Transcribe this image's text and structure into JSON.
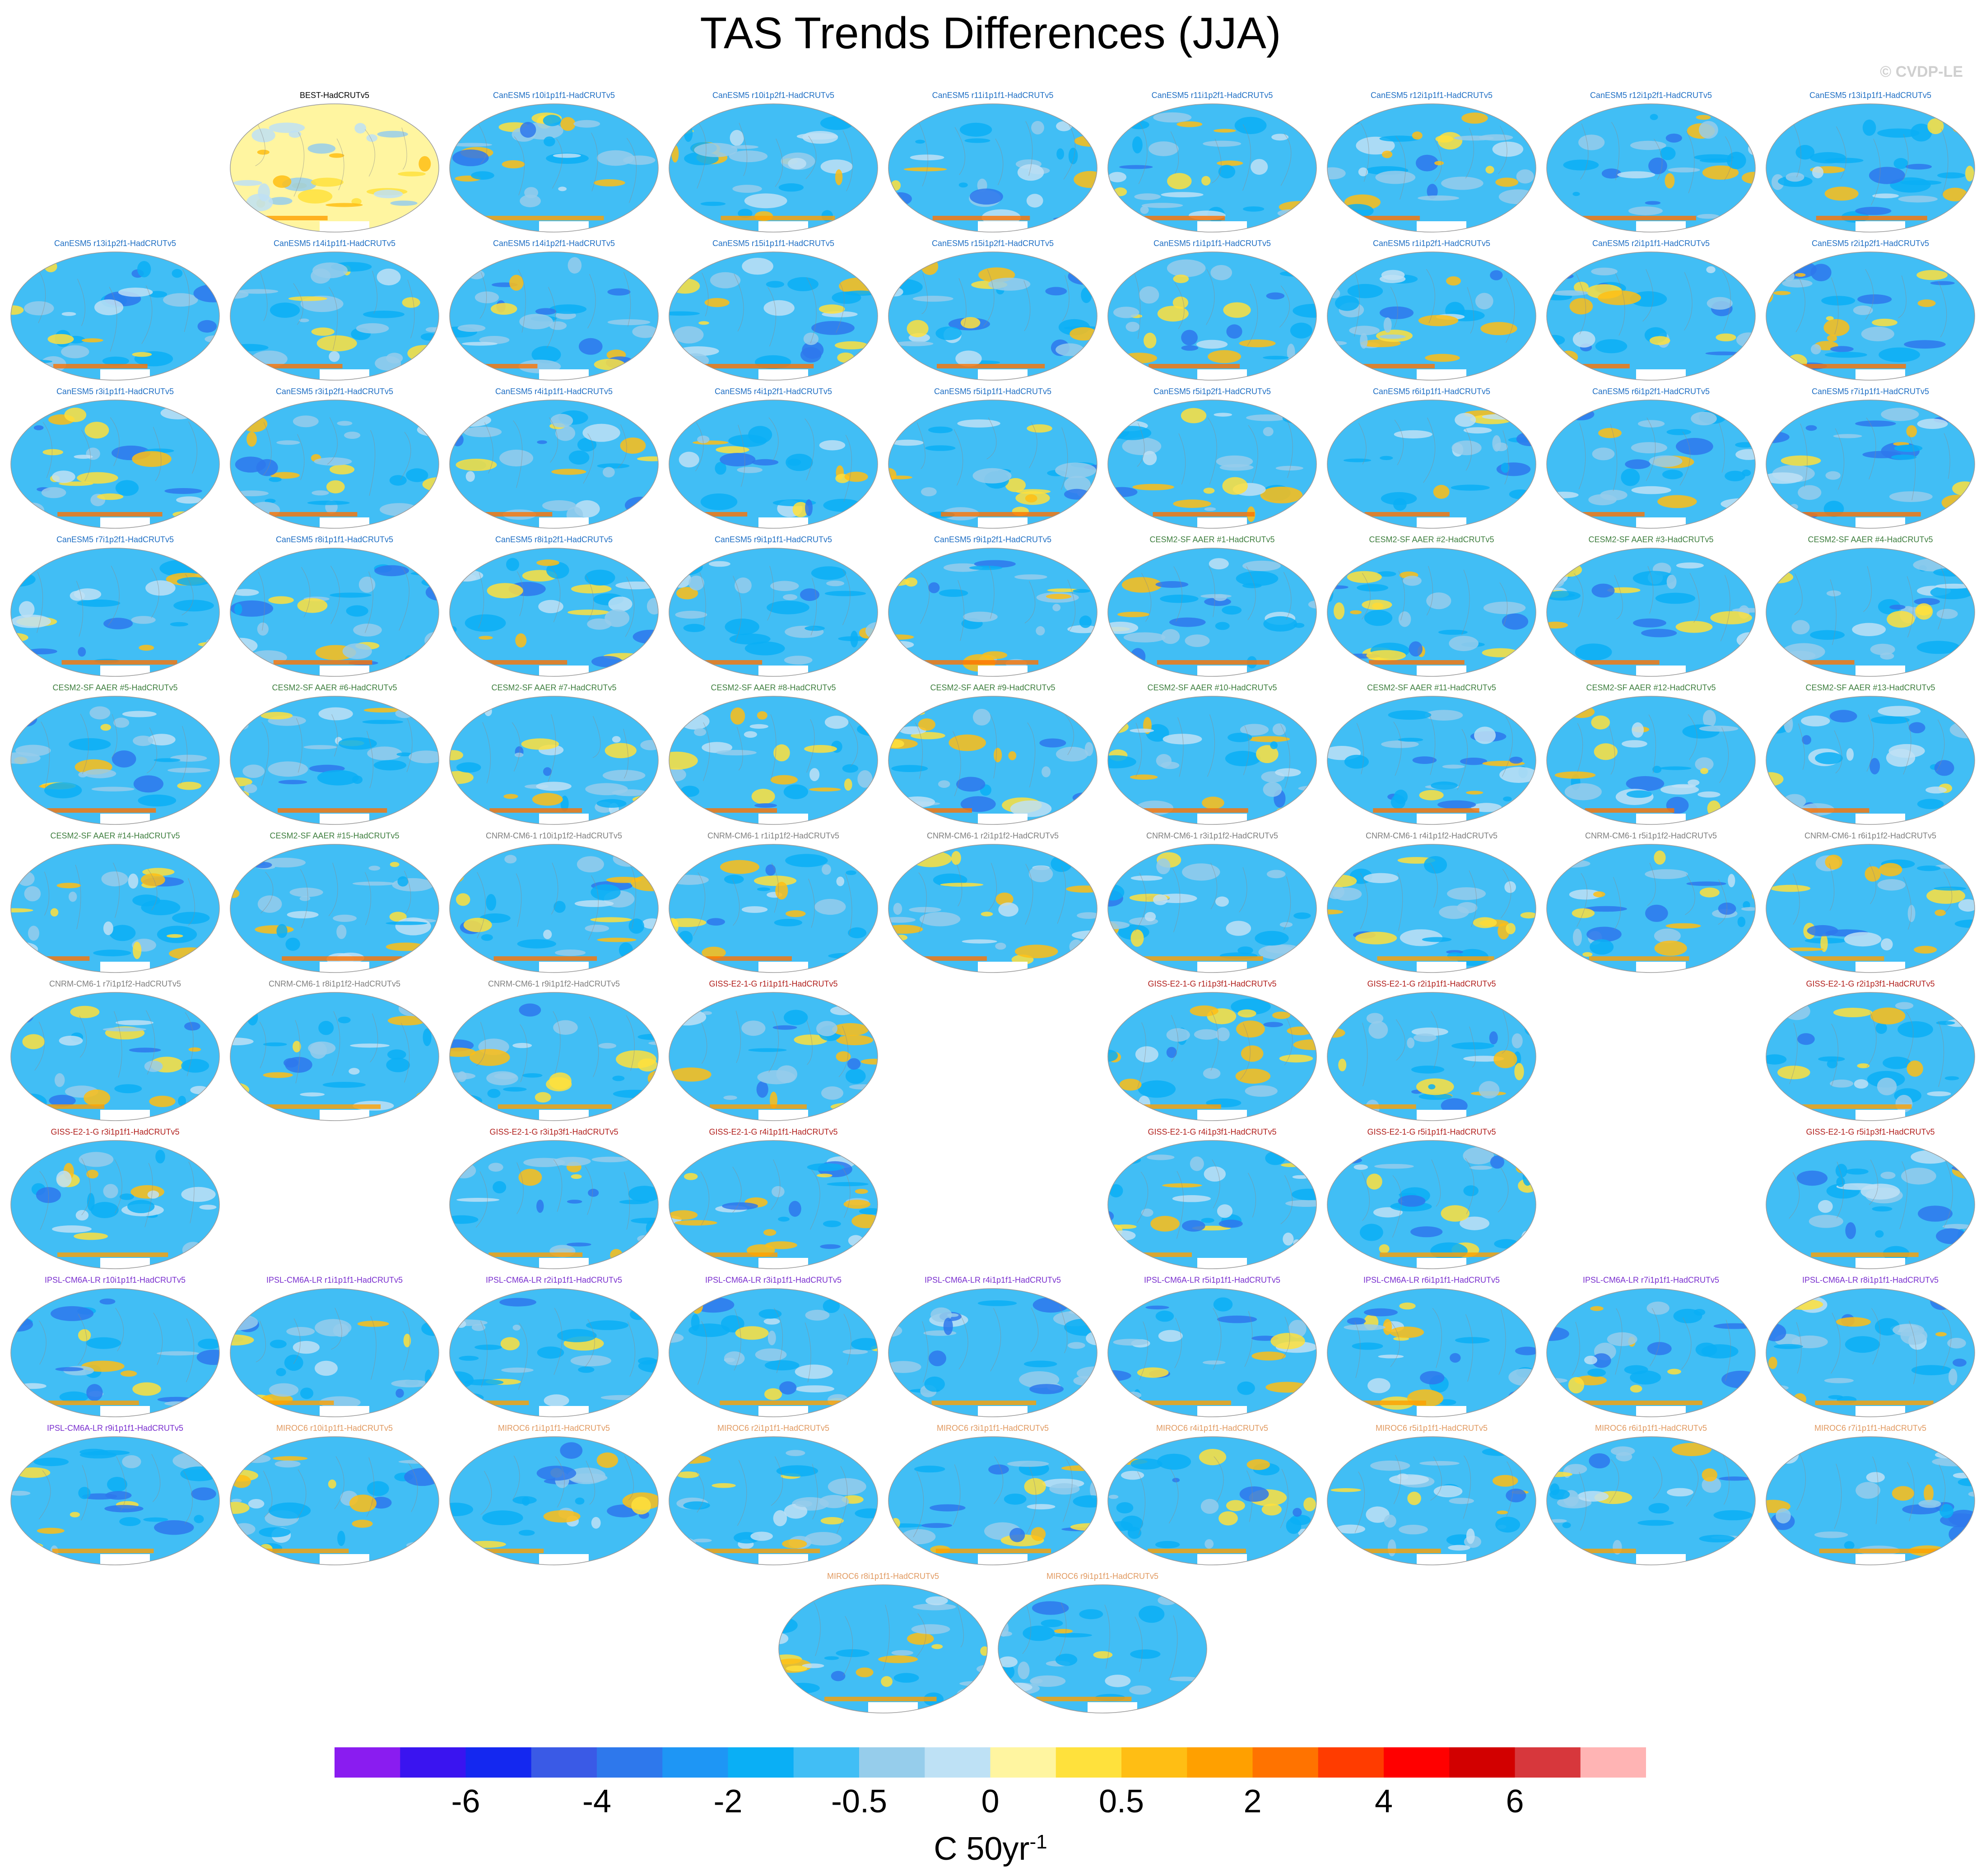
{
  "title": "TAS Trends Differences (JJA)",
  "watermark": "© CVDP-LE",
  "colorbar": {
    "colors": [
      "#8a1cf0",
      "#3a14f0",
      "#1428f0",
      "#3a5ae6",
      "#2e78ec",
      "#1e96f5",
      "#0aaff5",
      "#41bef5",
      "#96cdeb",
      "#bee1f5",
      "#fff5a0",
      "#ffe13c",
      "#ffbe14",
      "#ffa000",
      "#ff7300",
      "#ff3c00",
      "#ff0000",
      "#d20000",
      "#d7373c",
      "#ffb4b4"
    ],
    "labels": [
      "-6",
      "-4",
      "-2",
      "-0.5",
      "0",
      "0.5",
      "2",
      "4",
      "6"
    ],
    "units_base": "C 50yr",
    "units_exp": "-1"
  },
  "groups": {
    "obs": "#000000",
    "canesm5": "#1f6fc4",
    "cesm2": "#3f7f3f",
    "cnrm": "#7f7f7f",
    "giss": "#b2221f",
    "ipsl": "#7a2fcf",
    "miroc": "#e19a61"
  },
  "panels": [
    {
      "title": "BEST-HadCRUTv5",
      "group": "obs",
      "row": 0,
      "col": 1,
      "kind": "obs"
    },
    {
      "title": "CanESM5 r10i1p1f1-HadCRUTv5",
      "group": "canesm5",
      "row": 0,
      "col": 2
    },
    {
      "title": "CanESM5 r10i1p2f1-HadCRUTv5",
      "group": "canesm5",
      "row": 0,
      "col": 3
    },
    {
      "title": "CanESM5 r11i1p1f1-HadCRUTv5",
      "group": "canesm5",
      "row": 0,
      "col": 4
    },
    {
      "title": "CanESM5 r11i1p2f1-HadCRUTv5",
      "group": "canesm5",
      "row": 0,
      "col": 5
    },
    {
      "title": "CanESM5 r12i1p1f1-HadCRUTv5",
      "group": "canesm5",
      "row": 0,
      "col": 6
    },
    {
      "title": "CanESM5 r12i1p2f1-HadCRUTv5",
      "group": "canesm5",
      "row": 0,
      "col": 7
    },
    {
      "title": "CanESM5 r13i1p1f1-HadCRUTv5",
      "group": "canesm5",
      "row": 0,
      "col": 8
    },
    {
      "title": "CanESM5 r13i1p2f1-HadCRUTv5",
      "group": "canesm5",
      "row": 1,
      "col": 0
    },
    {
      "title": "CanESM5 r14i1p1f1-HadCRUTv5",
      "group": "canesm5",
      "row": 1,
      "col": 1
    },
    {
      "title": "CanESM5 r14i1p2f1-HadCRUTv5",
      "group": "canesm5",
      "row": 1,
      "col": 2
    },
    {
      "title": "CanESM5 r15i1p1f1-HadCRUTv5",
      "group": "canesm5",
      "row": 1,
      "col": 3
    },
    {
      "title": "CanESM5 r15i1p2f1-HadCRUTv5",
      "group": "canesm5",
      "row": 1,
      "col": 4
    },
    {
      "title": "CanESM5 r1i1p1f1-HadCRUTv5",
      "group": "canesm5",
      "row": 1,
      "col": 5
    },
    {
      "title": "CanESM5 r1i1p2f1-HadCRUTv5",
      "group": "canesm5",
      "row": 1,
      "col": 6
    },
    {
      "title": "CanESM5 r2i1p1f1-HadCRUTv5",
      "group": "canesm5",
      "row": 1,
      "col": 7
    },
    {
      "title": "CanESM5 r2i1p2f1-HadCRUTv5",
      "group": "canesm5",
      "row": 1,
      "col": 8
    },
    {
      "title": "CanESM5 r3i1p1f1-HadCRUTv5",
      "group": "canesm5",
      "row": 2,
      "col": 0
    },
    {
      "title": "CanESM5 r3i1p2f1-HadCRUTv5",
      "group": "canesm5",
      "row": 2,
      "col": 1
    },
    {
      "title": "CanESM5 r4i1p1f1-HadCRUTv5",
      "group": "canesm5",
      "row": 2,
      "col": 2
    },
    {
      "title": "CanESM5 r4i1p2f1-HadCRUTv5",
      "group": "canesm5",
      "row": 2,
      "col": 3
    },
    {
      "title": "CanESM5 r5i1p1f1-HadCRUTv5",
      "group": "canesm5",
      "row": 2,
      "col": 4
    },
    {
      "title": "CanESM5 r5i1p2f1-HadCRUTv5",
      "group": "canesm5",
      "row": 2,
      "col": 5
    },
    {
      "title": "CanESM5 r6i1p1f1-HadCRUTv5",
      "group": "canesm5",
      "row": 2,
      "col": 6
    },
    {
      "title": "CanESM5 r6i1p2f1-HadCRUTv5",
      "group": "canesm5",
      "row": 2,
      "col": 7
    },
    {
      "title": "CanESM5 r7i1p1f1-HadCRUTv5",
      "group": "canesm5",
      "row": 2,
      "col": 8
    },
    {
      "title": "CanESM5 r7i1p2f1-HadCRUTv5",
      "group": "canesm5",
      "row": 3,
      "col": 0
    },
    {
      "title": "CanESM5 r8i1p1f1-HadCRUTv5",
      "group": "canesm5",
      "row": 3,
      "col": 1
    },
    {
      "title": "CanESM5 r8i1p2f1-HadCRUTv5",
      "group": "canesm5",
      "row": 3,
      "col": 2
    },
    {
      "title": "CanESM5 r9i1p1f1-HadCRUTv5",
      "group": "canesm5",
      "row": 3,
      "col": 3
    },
    {
      "title": "CanESM5 r9i1p2f1-HadCRUTv5",
      "group": "canesm5",
      "row": 3,
      "col": 4
    },
    {
      "title": "CESM2-SF AAER #1-HadCRUTv5",
      "group": "cesm2",
      "row": 3,
      "col": 5
    },
    {
      "title": "CESM2-SF AAER #2-HadCRUTv5",
      "group": "cesm2",
      "row": 3,
      "col": 6
    },
    {
      "title": "CESM2-SF AAER #3-HadCRUTv5",
      "group": "cesm2",
      "row": 3,
      "col": 7
    },
    {
      "title": "CESM2-SF AAER #4-HadCRUTv5",
      "group": "cesm2",
      "row": 3,
      "col": 8
    },
    {
      "title": "CESM2-SF AAER #5-HadCRUTv5",
      "group": "cesm2",
      "row": 4,
      "col": 0
    },
    {
      "title": "CESM2-SF AAER #6-HadCRUTv5",
      "group": "cesm2",
      "row": 4,
      "col": 1
    },
    {
      "title": "CESM2-SF AAER #7-HadCRUTv5",
      "group": "cesm2",
      "row": 4,
      "col": 2
    },
    {
      "title": "CESM2-SF AAER #8-HadCRUTv5",
      "group": "cesm2",
      "row": 4,
      "col": 3
    },
    {
      "title": "CESM2-SF AAER #9-HadCRUTv5",
      "group": "cesm2",
      "row": 4,
      "col": 4
    },
    {
      "title": "CESM2-SF AAER #10-HadCRUTv5",
      "group": "cesm2",
      "row": 4,
      "col": 5
    },
    {
      "title": "CESM2-SF AAER #11-HadCRUTv5",
      "group": "cesm2",
      "row": 4,
      "col": 6
    },
    {
      "title": "CESM2-SF AAER #12-HadCRUTv5",
      "group": "cesm2",
      "row": 4,
      "col": 7
    },
    {
      "title": "CESM2-SF AAER #13-HadCRUTv5",
      "group": "cesm2",
      "row": 4,
      "col": 8
    },
    {
      "title": "CESM2-SF AAER #14-HadCRUTv5",
      "group": "cesm2",
      "row": 5,
      "col": 0
    },
    {
      "title": "CESM2-SF AAER #15-HadCRUTv5",
      "group": "cesm2",
      "row": 5,
      "col": 1
    },
    {
      "title": "CNRM-CM6-1 r10i1p1f2-HadCRUTv5",
      "group": "cnrm",
      "row": 5,
      "col": 2
    },
    {
      "title": "CNRM-CM6-1 r1i1p1f2-HadCRUTv5",
      "group": "cnrm",
      "row": 5,
      "col": 3
    },
    {
      "title": "CNRM-CM6-1 r2i1p1f2-HadCRUTv5",
      "group": "cnrm",
      "row": 5,
      "col": 4
    },
    {
      "title": "CNRM-CM6-1 r3i1p1f2-HadCRUTv5",
      "group": "cnrm",
      "row": 5,
      "col": 5
    },
    {
      "title": "CNRM-CM6-1 r4i1p1f2-HadCRUTv5",
      "group": "cnrm",
      "row": 5,
      "col": 6
    },
    {
      "title": "CNRM-CM6-1 r5i1p1f2-HadCRUTv5",
      "group": "cnrm",
      "row": 5,
      "col": 7
    },
    {
      "title": "CNRM-CM6-1 r6i1p1f2-HadCRUTv5",
      "group": "cnrm",
      "row": 5,
      "col": 8
    },
    {
      "title": "CNRM-CM6-1 r7i1p1f2-HadCRUTv5",
      "group": "cnrm",
      "row": 6,
      "col": 0
    },
    {
      "title": "CNRM-CM6-1 r8i1p1f2-HadCRUTv5",
      "group": "cnrm",
      "row": 6,
      "col": 1
    },
    {
      "title": "CNRM-CM6-1 r9i1p1f2-HadCRUTv5",
      "group": "cnrm",
      "row": 6,
      "col": 2
    },
    {
      "title": "GISS-E2-1-G r1i1p1f1-HadCRUTv5",
      "group": "giss",
      "row": 6,
      "col": 3
    },
    {
      "title": "GISS-E2-1-G r1i1p3f1-HadCRUTv5",
      "group": "giss",
      "row": 6,
      "col": 5
    },
    {
      "title": "GISS-E2-1-G r2i1p1f1-HadCRUTv5",
      "group": "giss",
      "row": 6,
      "col": 6
    },
    {
      "title": "GISS-E2-1-G r2i1p3f1-HadCRUTv5",
      "group": "giss",
      "row": 6,
      "col": 8
    },
    {
      "title": "GISS-E2-1-G r3i1p1f1-HadCRUTv5",
      "group": "giss",
      "row": 7,
      "col": 0
    },
    {
      "title": "GISS-E2-1-G r3i1p3f1-HadCRUTv5",
      "group": "giss",
      "row": 7,
      "col": 2
    },
    {
      "title": "GISS-E2-1-G r4i1p1f1-HadCRUTv5",
      "group": "giss",
      "row": 7,
      "col": 3
    },
    {
      "title": "GISS-E2-1-G r4i1p3f1-HadCRUTv5",
      "group": "giss",
      "row": 7,
      "col": 5
    },
    {
      "title": "GISS-E2-1-G r5i1p1f1-HadCRUTv5",
      "group": "giss",
      "row": 7,
      "col": 6
    },
    {
      "title": "GISS-E2-1-G r5i1p3f1-HadCRUTv5",
      "group": "giss",
      "row": 7,
      "col": 8
    },
    {
      "title": "IPSL-CM6A-LR r10i1p1f1-HadCRUTv5",
      "group": "ipsl",
      "row": 8,
      "col": 0
    },
    {
      "title": "IPSL-CM6A-LR r1i1p1f1-HadCRUTv5",
      "group": "ipsl",
      "row": 8,
      "col": 1
    },
    {
      "title": "IPSL-CM6A-LR r2i1p1f1-HadCRUTv5",
      "group": "ipsl",
      "row": 8,
      "col": 2
    },
    {
      "title": "IPSL-CM6A-LR r3i1p1f1-HadCRUTv5",
      "group": "ipsl",
      "row": 8,
      "col": 3
    },
    {
      "title": "IPSL-CM6A-LR r4i1p1f1-HadCRUTv5",
      "group": "ipsl",
      "row": 8,
      "col": 4
    },
    {
      "title": "IPSL-CM6A-LR r5i1p1f1-HadCRUTv5",
      "group": "ipsl",
      "row": 8,
      "col": 5
    },
    {
      "title": "IPSL-CM6A-LR r6i1p1f1-HadCRUTv5",
      "group": "ipsl",
      "row": 8,
      "col": 6
    },
    {
      "title": "IPSL-CM6A-LR r7i1p1f1-HadCRUTv5",
      "group": "ipsl",
      "row": 8,
      "col": 7
    },
    {
      "title": "IPSL-CM6A-LR r8i1p1f1-HadCRUTv5",
      "group": "ipsl",
      "row": 8,
      "col": 8
    },
    {
      "title": "IPSL-CM6A-LR r9i1p1f1-HadCRUTv5",
      "group": "ipsl",
      "row": 9,
      "col": 0
    },
    {
      "title": "MIROC6 r10i1p1f1-HadCRUTv5",
      "group": "miroc",
      "row": 9,
      "col": 1
    },
    {
      "title": "MIROC6 r1i1p1f1-HadCRUTv5",
      "group": "miroc",
      "row": 9,
      "col": 2
    },
    {
      "title": "MIROC6 r2i1p1f1-HadCRUTv5",
      "group": "miroc",
      "row": 9,
      "col": 3
    },
    {
      "title": "MIROC6 r3i1p1f1-HadCRUTv5",
      "group": "miroc",
      "row": 9,
      "col": 4
    },
    {
      "title": "MIROC6 r4i1p1f1-HadCRUTv5",
      "group": "miroc",
      "row": 9,
      "col": 5
    },
    {
      "title": "MIROC6 r5i1p1f1-HadCRUTv5",
      "group": "miroc",
      "row": 9,
      "col": 6
    },
    {
      "title": "MIROC6 r6i1p1f1-HadCRUTv5",
      "group": "miroc",
      "row": 9,
      "col": 7
    },
    {
      "title": "MIROC6 r7i1p1f1-HadCRUTv5",
      "group": "miroc",
      "row": 9,
      "col": 8
    },
    {
      "title": "MIROC6 r8i1p1f1-HadCRUTv5",
      "group": "miroc",
      "row": 10,
      "col": 3.5
    },
    {
      "title": "MIROC6 r9i1p1f1-HadCRUTv5",
      "group": "miroc",
      "row": 10,
      "col": 4.5
    }
  ]
}
